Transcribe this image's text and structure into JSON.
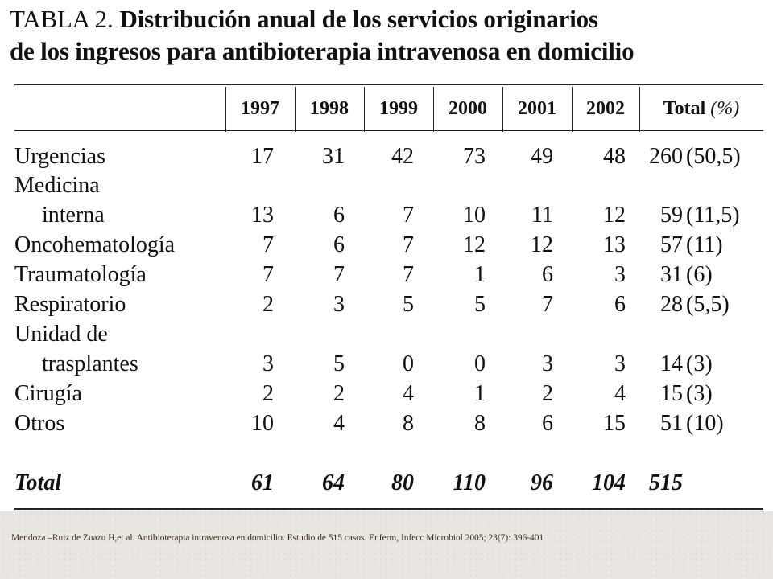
{
  "title": {
    "label": "TABLA 2.",
    "line1": "Distribución anual de los servicios originarios",
    "line2": "de los ingresos para antibioterapia intravenosa en domicilio"
  },
  "table": {
    "columns": [
      "1997",
      "1998",
      "1999",
      "2000",
      "2001",
      "2002"
    ],
    "total_header": "Total",
    "total_header_unit": "(%)",
    "rows": [
      {
        "label": "Urgencias",
        "values": [
          "17",
          "31",
          "42",
          "73",
          "49",
          "48"
        ],
        "total": "260",
        "pct": "(50,5)"
      },
      {
        "label": "Medicina",
        "label_cont": "interna",
        "values": [
          "13",
          "6",
          "7",
          "10",
          "11",
          "12"
        ],
        "total": "59",
        "pct": "(11,5)"
      },
      {
        "label": "Oncohematología",
        "values": [
          "7",
          "6",
          "7",
          "12",
          "12",
          "13"
        ],
        "total": "57",
        "pct": "(11)"
      },
      {
        "label": "Traumatología",
        "values": [
          "7",
          "7",
          "7",
          "1",
          "6",
          "3"
        ],
        "total": "31",
        "pct": "(6)"
      },
      {
        "label": "Respiratorio",
        "values": [
          "2",
          "3",
          "5",
          "5",
          "7",
          "6"
        ],
        "total": "28",
        "pct": "(5,5)"
      },
      {
        "label": "Unidad de",
        "label_cont": "trasplantes",
        "values": [
          "3",
          "5",
          "0",
          "0",
          "3",
          "3"
        ],
        "total": "14",
        "pct": "(3)"
      },
      {
        "label": "Cirugía",
        "values": [
          "2",
          "2",
          "4",
          "1",
          "2",
          "4"
        ],
        "total": "15",
        "pct": "(3)"
      },
      {
        "label": "Otros",
        "values": [
          "10",
          "4",
          "8",
          "8",
          "6",
          "15"
        ],
        "total": "51",
        "pct": "(10)"
      }
    ],
    "total_row": {
      "label": "Total",
      "values": [
        "61",
        "64",
        "80",
        "110",
        "96",
        "104"
      ],
      "total": "515"
    }
  },
  "citation": "Mendoza –Ruiz de Zuazu H,et al. Antibioterapia  intravenosa  en  domicilio.  Estudio  de  515  casos.  Enferm, Infecc Microbiol 2005; 23(7): 396-401"
}
